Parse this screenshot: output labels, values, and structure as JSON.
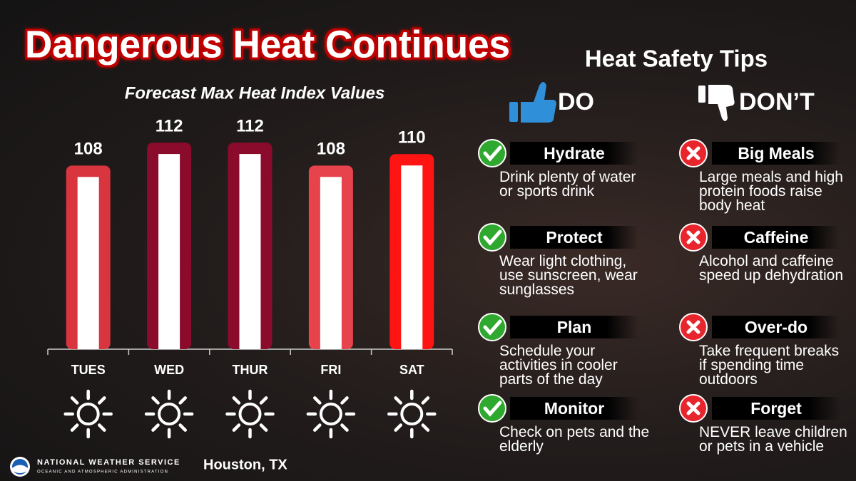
{
  "title": "Dangerous Heat Continues",
  "chart_data": {
    "type": "bar",
    "title": "Forecast Max Heat Index Values",
    "categories": [
      "TUES",
      "WED",
      "THUR",
      "FRI",
      "SAT"
    ],
    "values": [
      108,
      112,
      112,
      108,
      110
    ],
    "colors": [
      "#d8353f",
      "#8a0b2c",
      "#8a0b2c",
      "#e6434c",
      "#ff1414"
    ],
    "ylim": [
      76,
      114
    ]
  },
  "tips": {
    "title": "Heat Safety Tips",
    "do": {
      "label": "DO",
      "items": [
        {
          "title": "Hydrate",
          "text": "Drink plenty of water or sports drink"
        },
        {
          "title": "Protect",
          "text": "Wear light clothing, use sunscreen, wear sunglasses"
        },
        {
          "title": "Plan",
          "text": "Schedule your activities in cooler parts of the day"
        },
        {
          "title": "Monitor",
          "text": "Check on pets and the elderly"
        }
      ]
    },
    "dont": {
      "label": "DON’T",
      "items": [
        {
          "title": "Big Meals",
          "text": "Large meals and high protein foods raise body heat"
        },
        {
          "title": "Caffeine",
          "text": "Alcohol and caffeine speed up dehydration"
        },
        {
          "title": "Over-do",
          "text": "Take frequent breaks if spending time outdoors"
        },
        {
          "title": "Forget",
          "text": "NEVER leave children or pets in a vehicle"
        }
      ]
    }
  },
  "footer": {
    "agency": "NATIONAL WEATHER SERVICE",
    "subagency": "OCEANIC AND ATMOSPHERIC ADMINISTRATION",
    "office": "Houston, TX"
  }
}
